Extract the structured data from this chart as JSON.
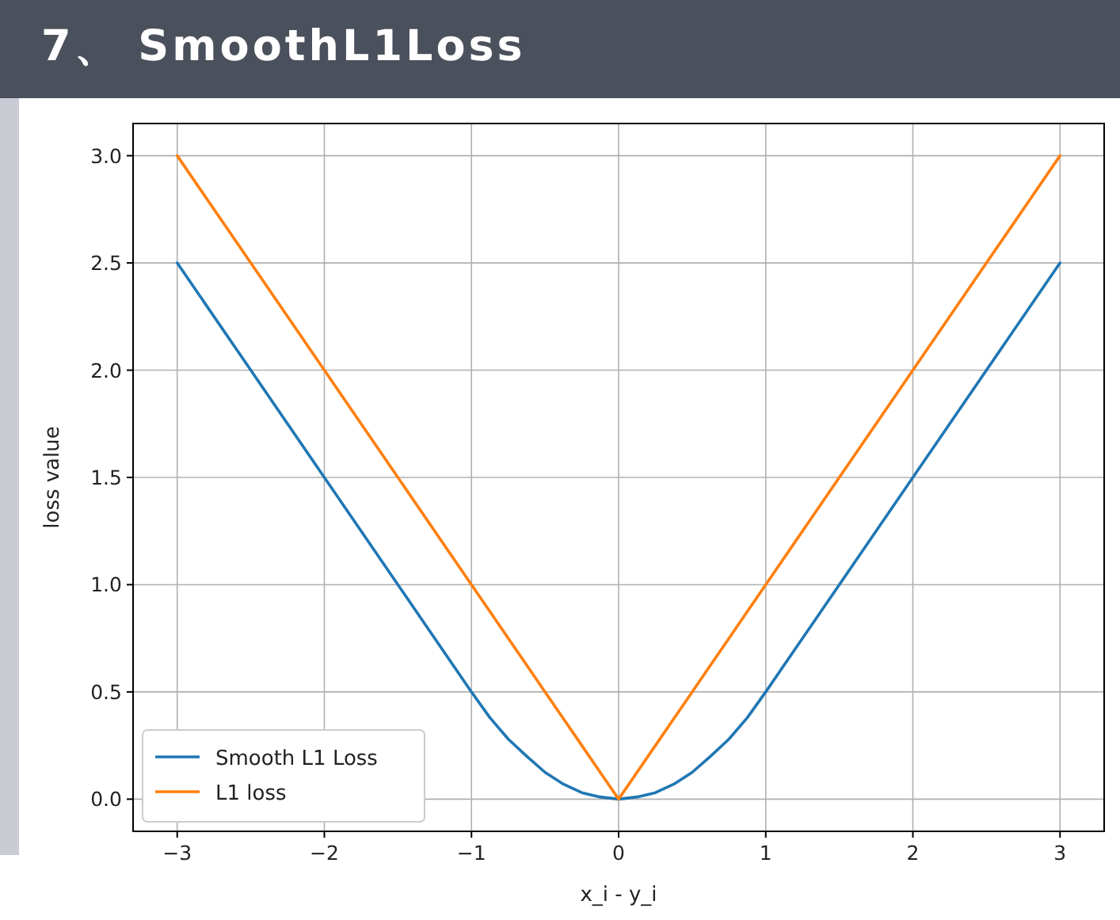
{
  "chart_data": {
    "type": "line",
    "title": "7、 SmoothL1Loss",
    "xlabel": "x_i - y_i",
    "ylabel": "loss value",
    "x": [
      -3,
      -2.5,
      -2,
      -1.5,
      -1,
      -0.875,
      -0.75,
      -0.625,
      -0.5,
      -0.375,
      -0.25,
      -0.125,
      0,
      0.125,
      0.25,
      0.375,
      0.5,
      0.625,
      0.75,
      0.875,
      1,
      1.5,
      2,
      2.5,
      3
    ],
    "series": [
      {
        "name": "Smooth L1 Loss",
        "color": "#1f77b4",
        "values": [
          2.5,
          2,
          1.5,
          1,
          0.5,
          0.38,
          0.28,
          0.2,
          0.125,
          0.07,
          0.03,
          0.01,
          0,
          0.01,
          0.03,
          0.07,
          0.125,
          0.2,
          0.28,
          0.38,
          0.5,
          1,
          1.5,
          2,
          2.5
        ]
      },
      {
        "name": "L1 loss",
        "color": "#ff7f0e",
        "values": [
          3,
          2.5,
          2,
          1.5,
          1,
          0.875,
          0.75,
          0.625,
          0.5,
          0.375,
          0.25,
          0.125,
          0,
          0.125,
          0.25,
          0.375,
          0.5,
          0.625,
          0.75,
          0.875,
          1,
          1.5,
          2,
          2.5,
          3
        ]
      }
    ],
    "xlim": [
      -3.3,
      3.3
    ],
    "ylim": [
      -0.15,
      3.15
    ],
    "xticks": [
      {
        "value": -3,
        "label": "−3"
      },
      {
        "value": -2,
        "label": "−2"
      },
      {
        "value": -1,
        "label": "−1"
      },
      {
        "value": 0,
        "label": "0"
      },
      {
        "value": 1,
        "label": "1"
      },
      {
        "value": 2,
        "label": "2"
      },
      {
        "value": 3,
        "label": "3"
      }
    ],
    "yticks": [
      {
        "value": 0,
        "label": "0.0"
      },
      {
        "value": 0.5,
        "label": "0.5"
      },
      {
        "value": 1,
        "label": "1.0"
      },
      {
        "value": 1.5,
        "label": "1.5"
      },
      {
        "value": 2,
        "label": "2.0"
      },
      {
        "value": 2.5,
        "label": "2.5"
      },
      {
        "value": 3,
        "label": "3.0"
      }
    ],
    "grid": true,
    "legend": "bottom left",
    "line_style": "solid"
  }
}
